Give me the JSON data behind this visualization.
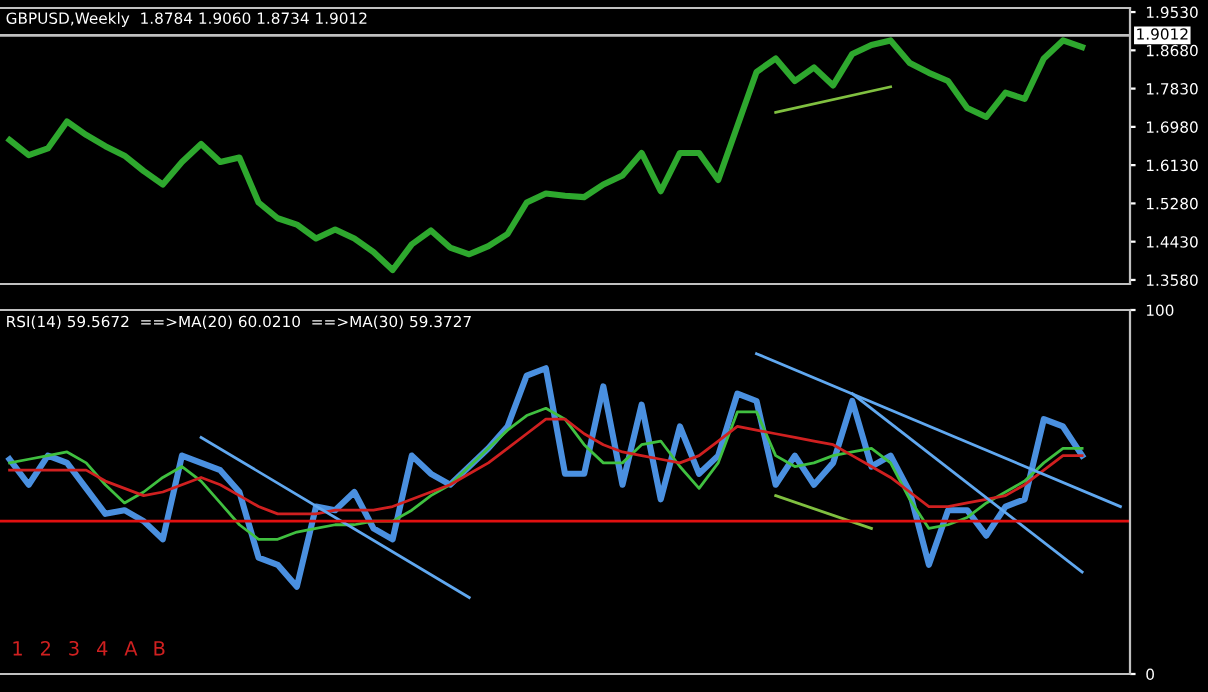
{
  "chart_data": [
    {
      "type": "line",
      "title": "GBPUSD,Weekly  1.8784 1.9060 1.8734 1.9012",
      "tick_labels": "y",
      "grid": false,
      "categories": [
        null,
        null,
        null,
        null,
        null,
        null,
        null,
        null,
        null,
        null,
        null,
        null,
        null,
        null,
        null,
        null,
        null,
        null,
        null,
        null,
        null,
        null,
        null,
        null,
        null,
        null,
        null,
        null,
        null,
        null,
        null,
        null,
        null,
        null,
        null,
        null,
        null,
        null,
        null,
        null,
        null,
        null,
        null,
        null,
        null,
        null,
        null,
        null,
        null,
        null,
        null,
        null,
        null,
        null,
        null,
        null,
        null,
        null,
        null
      ],
      "ylim": [
        1.349,
        1.962
      ],
      "yticks": [
        {
          "value": 1.358,
          "label": "1.3580"
        },
        {
          "value": 1.443,
          "label": "1.4430"
        },
        {
          "value": 1.528,
          "label": "1.5280"
        },
        {
          "value": 1.613,
          "label": "1.6130"
        },
        {
          "value": 1.698,
          "label": "1.6980"
        },
        {
          "value": 1.783,
          "label": "1.7830"
        },
        {
          "value": 1.868,
          "label": "1.8680"
        },
        {
          "value": 1.953,
          "label": "1.9530"
        }
      ],
      "ref_lines": [
        {
          "axis": "y",
          "value": 1.9012,
          "label": "1.9012",
          "color": "#c0c0c0"
        }
      ],
      "series": [
        {
          "color": "#2ea82e",
          "values": [
            1.669,
            1.635,
            1.65,
            1.71,
            1.68,
            1.655,
            1.634,
            1.6,
            1.57,
            1.62,
            1.66,
            1.62,
            1.63,
            1.53,
            1.495,
            1.481,
            1.45,
            1.47,
            1.45,
            1.42,
            1.38,
            1.437,
            1.468,
            1.43,
            1.415,
            1.433,
            1.46,
            1.53,
            1.55,
            1.545,
            1.542,
            1.57,
            1.59,
            1.64,
            1.555,
            1.64,
            1.64,
            1.58,
            1.7,
            1.82,
            1.85,
            1.8,
            1.83,
            1.79,
            1.86,
            1.88,
            1.89,
            1.84,
            1.818,
            1.8,
            1.74,
            1.72,
            1.774,
            1.76,
            1.85,
            1.89,
            1.875,
            null,
            null
          ]
        },
        {
          "color": "#80c040",
          "values": [
            null,
            null,
            null,
            null,
            null,
            null,
            null,
            null,
            null,
            null,
            null,
            null,
            null,
            null,
            null,
            null,
            null,
            null,
            null,
            null,
            null,
            null,
            null,
            null,
            null,
            null,
            null,
            null,
            null,
            null,
            null,
            null,
            null,
            null,
            null,
            null,
            null,
            null,
            null,
            null,
            1.73,
            null,
            null,
            null,
            null,
            null,
            1.787,
            null,
            null,
            null,
            null,
            null,
            null,
            null,
            null,
            null,
            null,
            null,
            null
          ]
        }
      ]
    },
    {
      "type": "line",
      "title": "RSI(14) 59.5672  ==>MA(20) 60.0210  ==>MA(30) 59.3727",
      "tick_labels": "y",
      "grid": false,
      "categories": [
        null,
        null,
        null,
        null,
        null,
        null,
        null,
        null,
        null,
        null,
        null,
        null,
        null,
        null,
        null,
        null,
        null,
        null,
        null,
        null,
        null,
        null,
        null,
        null,
        null,
        null,
        null,
        null,
        null,
        null,
        null,
        null,
        null,
        null,
        null,
        null,
        null,
        null,
        null,
        null,
        null,
        null,
        null,
        null,
        null,
        null,
        null,
        null,
        null,
        null,
        null,
        null,
        null,
        null,
        null,
        null,
        null,
        null,
        null
      ],
      "ylim": [
        0,
        100
      ],
      "yticks": [
        0,
        100
      ],
      "ref_lines": [
        {
          "axis": "y",
          "value": 42,
          "color": "#e01010"
        }
      ],
      "annotations": [
        "1",
        "2",
        "3",
        "4",
        "A",
        "B"
      ],
      "series": [
        {
          "color": "#4a90e0",
          "values": [
            59,
            52,
            60,
            58,
            51,
            44,
            45,
            42,
            37,
            60,
            58,
            56,
            50,
            32,
            30,
            24,
            46,
            45,
            50,
            40,
            37,
            60,
            55,
            52,
            57,
            62,
            68,
            82,
            84,
            55,
            55,
            79,
            52,
            74,
            48,
            68,
            55,
            60,
            77,
            75,
            52,
            60,
            52,
            58,
            75,
            57,
            60,
            50,
            30,
            45,
            45,
            38,
            46,
            48,
            70,
            68,
            60,
            null,
            null
          ]
        },
        {
          "color": "#40c040",
          "values": [
            58,
            59,
            60,
            61,
            58,
            52,
            47,
            50,
            54,
            57,
            53,
            47,
            41,
            37,
            37,
            39,
            40,
            41,
            41,
            42,
            42,
            45,
            49,
            52,
            57,
            62,
            67,
            71,
            73,
            70,
            63,
            58,
            58,
            63,
            64,
            57,
            51,
            58,
            72,
            72,
            60,
            57,
            58,
            60,
            61,
            62,
            58,
            48,
            40,
            41,
            43,
            47,
            50,
            53,
            58,
            62,
            62,
            null,
            null
          ]
        },
        {
          "color": "#d02020",
          "values": [
            56,
            56,
            56,
            56,
            56,
            53,
            51,
            49,
            50,
            52,
            54,
            52,
            49,
            46,
            44,
            44,
            44,
            45,
            45,
            45,
            46,
            48,
            50,
            52,
            55,
            58,
            62,
            66,
            70,
            70,
            66,
            63,
            61,
            60,
            59,
            58,
            60,
            64,
            68,
            67,
            66,
            65,
            64,
            63,
            60,
            57,
            54,
            50,
            46,
            46,
            47,
            48,
            49,
            52,
            56,
            60,
            60,
            null,
            null
          ]
        },
        {
          "color": "#60a8f0",
          "values": [
            null,
            null,
            null,
            null,
            null,
            null,
            null,
            null,
            null,
            null,
            65,
            null,
            null,
            null,
            null,
            null,
            null,
            null,
            null,
            null,
            null,
            null,
            null,
            null,
            21,
            null,
            null,
            null,
            null,
            null,
            null,
            null,
            null,
            null,
            null,
            null,
            null,
            null,
            null,
            null,
            null,
            null,
            null,
            null,
            null,
            null,
            null,
            null,
            null,
            null,
            null,
            null,
            null,
            null,
            null,
            null,
            null,
            null,
            null
          ]
        },
        {
          "color": "#60a8f0",
          "values": [
            null,
            null,
            null,
            null,
            null,
            null,
            null,
            null,
            null,
            null,
            null,
            null,
            null,
            null,
            null,
            null,
            null,
            null,
            null,
            null,
            null,
            null,
            null,
            null,
            null,
            null,
            null,
            null,
            null,
            null,
            null,
            null,
            null,
            null,
            null,
            null,
            null,
            null,
            null,
            88,
            null,
            null,
            null,
            null,
            null,
            null,
            null,
            null,
            null,
            null,
            null,
            null,
            null,
            null,
            null,
            null,
            null,
            null,
            46
          ]
        },
        {
          "color": "#60a8f0",
          "values": [
            null,
            null,
            null,
            null,
            null,
            null,
            null,
            null,
            null,
            null,
            null,
            null,
            null,
            null,
            null,
            null,
            null,
            null,
            null,
            null,
            null,
            null,
            null,
            null,
            null,
            null,
            null,
            null,
            null,
            null,
            null,
            null,
            null,
            null,
            null,
            null,
            null,
            null,
            null,
            null,
            null,
            null,
            null,
            null,
            77,
            null,
            null,
            null,
            null,
            null,
            null,
            null,
            null,
            null,
            null,
            null,
            28,
            null,
            null
          ]
        },
        {
          "color": "#80c040",
          "values": [
            null,
            null,
            null,
            null,
            null,
            null,
            null,
            null,
            null,
            null,
            null,
            null,
            null,
            null,
            null,
            null,
            null,
            null,
            null,
            null,
            null,
            null,
            null,
            null,
            null,
            null,
            null,
            null,
            null,
            null,
            null,
            null,
            null,
            null,
            null,
            null,
            null,
            null,
            null,
            null,
            49,
            null,
            null,
            null,
            null,
            40,
            null,
            null,
            null,
            null,
            null,
            null,
            null,
            null,
            null,
            null,
            null,
            null,
            null
          ]
        }
      ]
    }
  ]
}
